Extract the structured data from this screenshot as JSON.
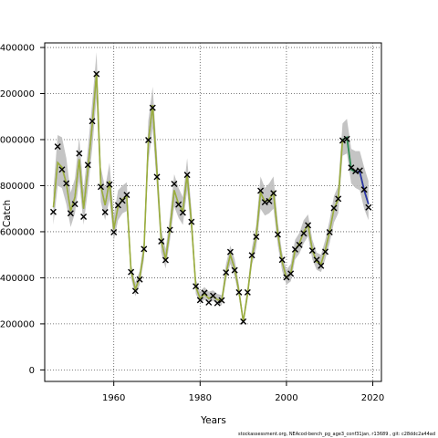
{
  "footer": "stockassessment.org, NEAcod-bench_pg_age3_conf31jan, r13689 , git: c28ddc2a44ad",
  "chart_data": {
    "type": "line",
    "title": "",
    "xlabel": "Years",
    "ylabel": "Catch",
    "xlim": [
      1944,
      2022
    ],
    "ylim": [
      -50000,
      1420000
    ],
    "xticks": [
      1960,
      1980,
      2000,
      2020
    ],
    "yticks": [
      0,
      200000,
      400000,
      600000,
      800000,
      1000000,
      1200000,
      1400000
    ],
    "ytick_labels": [
      "0",
      "200000",
      "400000",
      "600000",
      "800000",
      "1000000",
      "1200000",
      "1400000"
    ],
    "grid": true,
    "colors": {
      "band": "#bebebe",
      "estimate_main": "#9bad3c",
      "estimate_alt": "#2e8b57",
      "estimate_recent": "#3030b0",
      "observed": "#000000"
    },
    "series": [
      {
        "x": [
          1946,
          1947,
          1948,
          1949,
          1950,
          1951,
          1952,
          1953,
          1954,
          1955,
          1956,
          1957,
          1958,
          1959,
          1960,
          1961,
          1962,
          1963,
          1964,
          1965,
          1966,
          1967,
          1968,
          1969,
          1970,
          1971,
          1972,
          1973,
          1974,
          1975,
          1976,
          1977,
          1978,
          1979,
          1980,
          1981,
          1982,
          1983,
          1984,
          1985,
          1986,
          1987,
          1988,
          1989,
          1990,
          1991,
          1992,
          1993,
          1994,
          1995,
          1996,
          1997,
          1998,
          1999,
          2000,
          2001,
          2002,
          2003,
          2004,
          2005,
          2006,
          2007,
          2008,
          2009,
          2010,
          2011,
          2012,
          2013,
          2014,
          2015,
          2016,
          2017,
          2018,
          2019
        ],
        "y": [
          706000,
          900000,
          880000,
          810000,
          690000,
          750000,
          915000,
          700000,
          870000,
          1060000,
          1290000,
          800000,
          715000,
          820000,
          610000,
          710000,
          740000,
          755000,
          430000,
          350000,
          400000,
          520000,
          990000,
          1150000,
          860000,
          560000,
          480000,
          610000,
          780000,
          720000,
          690000,
          850000,
          640000,
          360000,
          310000,
          330000,
          310000,
          320000,
          305000,
          300000,
          420000,
          500000,
          440000,
          340000,
          210000,
          330000,
          490000,
          580000,
          770000,
          730000,
          740000,
          770000,
          590000,
          470000,
          400000,
          420000,
          520000,
          550000,
          600000,
          630000,
          520000,
          470000,
          460000,
          520000,
          600000,
          700000,
          740000,
          1000000,
          1010000,
          870000,
          860000,
          860000,
          780000,
          720000
        ],
        "lower": [
          630000,
          800000,
          790000,
          720000,
          620000,
          680000,
          820000,
          630000,
          780000,
          960000,
          1180000,
          730000,
          650000,
          740000,
          560000,
          650000,
          680000,
          690000,
          400000,
          320000,
          370000,
          480000,
          900000,
          1050000,
          790000,
          510000,
          440000,
          560000,
          710000,
          660000,
          630000,
          780000,
          590000,
          330000,
          290000,
          305000,
          290000,
          300000,
          285000,
          280000,
          390000,
          460000,
          405000,
          315000,
          195000,
          305000,
          455000,
          530000,
          700000,
          670000,
          680000,
          700000,
          540000,
          430000,
          370000,
          385000,
          480000,
          505000,
          550000,
          580000,
          480000,
          435000,
          425000,
          480000,
          550000,
          640000,
          680000,
          930000,
          940000,
          810000,
          790000,
          780000,
          700000,
          650000
        ],
        "upper": [
          780000,
          1020000,
          1010000,
          920000,
          770000,
          830000,
          1010000,
          780000,
          960000,
          1160000,
          1380000,
          880000,
          790000,
          900000,
          670000,
          780000,
          800000,
          815000,
          460000,
          380000,
          430000,
          565000,
          1080000,
          1230000,
          940000,
          610000,
          525000,
          665000,
          850000,
          790000,
          750000,
          920000,
          700000,
          395000,
          340000,
          360000,
          340000,
          345000,
          330000,
          325000,
          460000,
          540000,
          480000,
          370000,
          230000,
          360000,
          530000,
          630000,
          840000,
          790000,
          810000,
          840000,
          640000,
          510000,
          435000,
          460000,
          565000,
          595000,
          650000,
          675000,
          565000,
          510000,
          500000,
          565000,
          650000,
          755000,
          800000,
          1070000,
          1090000,
          960000,
          950000,
          950000,
          880000,
          820000
        ]
      },
      {
        "x": [
          1946,
          1947,
          1948,
          1949,
          1950,
          1951,
          1952,
          1953,
          1954,
          1955,
          1956,
          1957,
          1958,
          1959,
          1960,
          1961,
          1962,
          1963,
          1964,
          1965,
          1966,
          1967,
          1968,
          1969,
          1970,
          1971,
          1972,
          1973,
          1974,
          1975,
          1976,
          1977,
          1978,
          1979,
          1980,
          1981,
          1982,
          1983,
          1984,
          1985,
          1986,
          1987,
          1988,
          1989,
          1990,
          1991,
          1992,
          1993,
          1994,
          1995,
          1996,
          1997,
          1998,
          1999,
          2000,
          2001,
          2002,
          2003,
          2004,
          2005,
          2006,
          2007,
          2008,
          2009,
          2010,
          2011,
          2012,
          2013,
          2014,
          2015,
          2016,
          2017,
          2018,
          2019
        ],
        "y": [
          686000,
          970000,
          870000,
          810000,
          680000,
          720000,
          940000,
          665000,
          890000,
          1080000,
          1285000,
          795000,
          685000,
          805000,
          598000,
          715000,
          735000,
          760000,
          425000,
          343000,
          393000,
          525000,
          998000,
          1138000,
          838000,
          558000,
          477000,
          608000,
          808000,
          718000,
          683000,
          847000,
          643000,
          363000,
          303000,
          335000,
          293000,
          322000,
          290000,
          302000,
          423000,
          512000,
          433000,
          337000,
          210000,
          337000,
          498000,
          578000,
          778000,
          728000,
          733000,
          767000,
          588000,
          478000,
          402000,
          418000,
          523000,
          543000,
          593000,
          628000,
          518000,
          478000,
          452000,
          513000,
          598000,
          703000,
          743000,
          996000,
          1003000,
          878000,
          863000,
          866000,
          783000,
          706000
        ]
      }
    ]
  }
}
